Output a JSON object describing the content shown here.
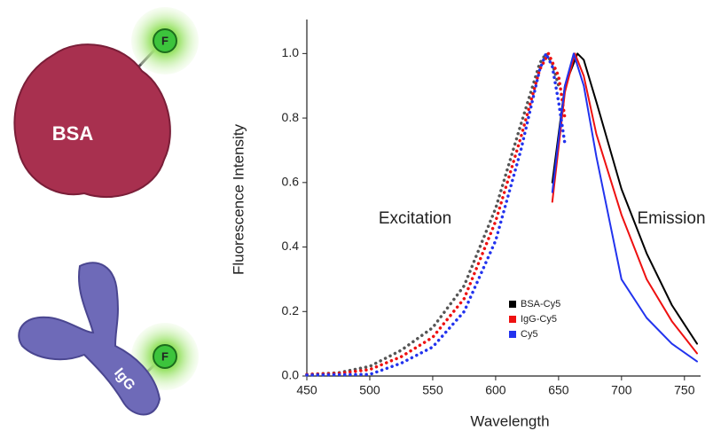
{
  "illustrations": {
    "protein_1": "BSA",
    "protein_2": "IgG",
    "dye_1": "F",
    "dye_2": "F"
  },
  "chart_data": {
    "type": "line",
    "x_label": "Wavelength",
    "y_label": "Fluorescence Intensity",
    "annotations": [
      "Excitation",
      "Emission"
    ],
    "xlim": [
      450,
      760
    ],
    "ylim": [
      0,
      1.1
    ],
    "xticks": [
      450,
      500,
      550,
      600,
      650,
      700,
      750
    ],
    "yticks": [
      {
        "value": 0,
        "label": "0.0"
      },
      0.2,
      0.4,
      0.6,
      0.8,
      {
        "value": 1,
        "label": "1.0"
      }
    ],
    "grid": false,
    "legend": "lower-center",
    "series": [
      {
        "name": "BSA-Cy5",
        "color": "#000000",
        "excitation_color": "#555555",
        "excitation": {
          "x": [
            450,
            475,
            500,
            525,
            550,
            575,
            600,
            620,
            635,
            640,
            645,
            650
          ],
          "values": [
            0.005,
            0.01,
            0.03,
            0.08,
            0.15,
            0.28,
            0.52,
            0.78,
            0.97,
            1.0,
            0.97,
            0.9
          ]
        },
        "emission": {
          "x": [
            645,
            655,
            665,
            670,
            680,
            700,
            720,
            740,
            760
          ],
          "values": [
            0.6,
            0.9,
            1.0,
            0.98,
            0.85,
            0.58,
            0.38,
            0.22,
            0.1
          ]
        }
      },
      {
        "name": "IgG-Cy5",
        "color": "#ee1111",
        "excitation_color": "#ee1111",
        "excitation": {
          "x": [
            450,
            475,
            500,
            525,
            550,
            575,
            600,
            620,
            635,
            642,
            650,
            655
          ],
          "values": [
            0.005,
            0.008,
            0.02,
            0.06,
            0.12,
            0.24,
            0.48,
            0.74,
            0.95,
            1.0,
            0.93,
            0.8
          ]
        },
        "emission": {
          "x": [
            645,
            655,
            663,
            670,
            680,
            700,
            720,
            740,
            760
          ],
          "values": [
            0.54,
            0.88,
            1.0,
            0.93,
            0.75,
            0.5,
            0.3,
            0.17,
            0.07
          ]
        }
      },
      {
        "name": "Cy5",
        "color": "#2233ee",
        "excitation_color": "#2233ee",
        "excitation": {
          "x": [
            450,
            475,
            500,
            525,
            550,
            575,
            600,
            620,
            635,
            640,
            645,
            650,
            655
          ],
          "values": [
            0.003,
            0.004,
            0.005,
            0.04,
            0.09,
            0.2,
            0.42,
            0.7,
            0.95,
            1.0,
            0.96,
            0.85,
            0.72
          ]
        },
        "emission": {
          "x": [
            645,
            655,
            662,
            670,
            680,
            700,
            720,
            740,
            760
          ],
          "values": [
            0.57,
            0.9,
            1.0,
            0.9,
            0.68,
            0.3,
            0.18,
            0.1,
            0.045
          ]
        }
      }
    ]
  }
}
